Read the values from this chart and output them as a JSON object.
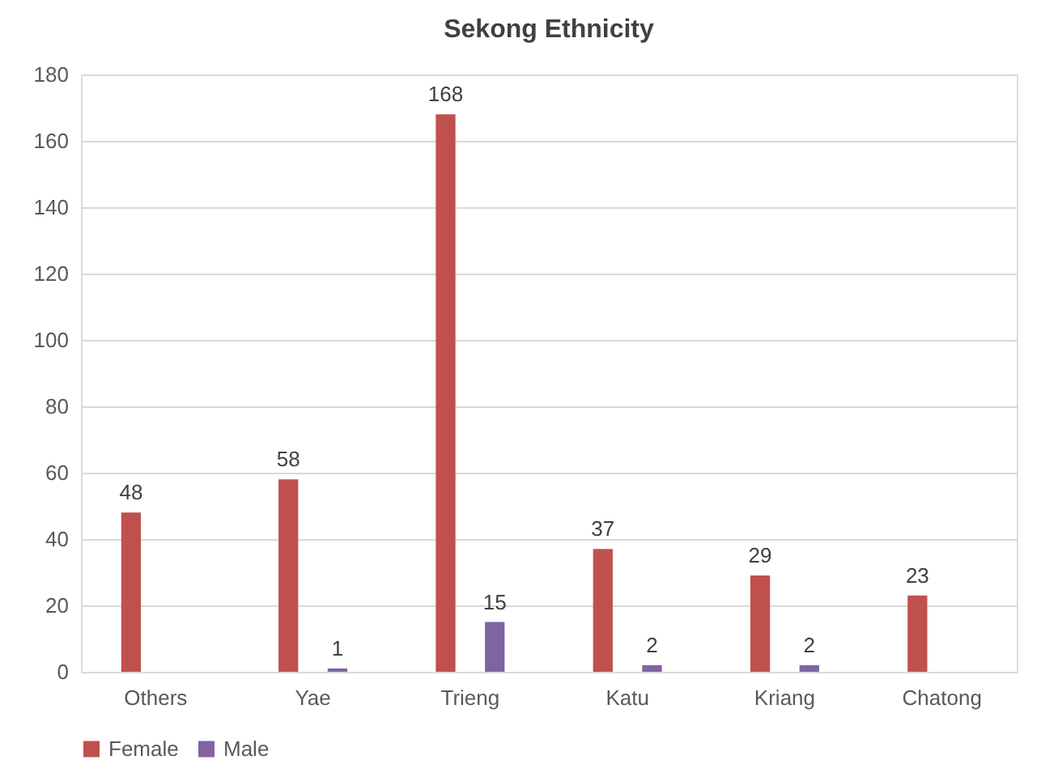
{
  "chart_data": {
    "type": "bar",
    "title": "Sekong Ethnicity",
    "categories": [
      "Others",
      "Yae",
      "Trieng",
      "Katu",
      "Kriang",
      "Chatong"
    ],
    "series": [
      {
        "name": "Female",
        "color": "#c0504d",
        "values": [
          48,
          58,
          168,
          37,
          29,
          23
        ]
      },
      {
        "name": "Male",
        "color": "#8064a2",
        "values": [
          null,
          1,
          15,
          2,
          2,
          null
        ]
      }
    ],
    "ylim": [
      0,
      180
    ],
    "yticks": [
      0,
      20,
      40,
      60,
      80,
      100,
      120,
      140,
      160,
      180
    ],
    "grid": "y",
    "legend": "bottom",
    "data_labels": true
  }
}
